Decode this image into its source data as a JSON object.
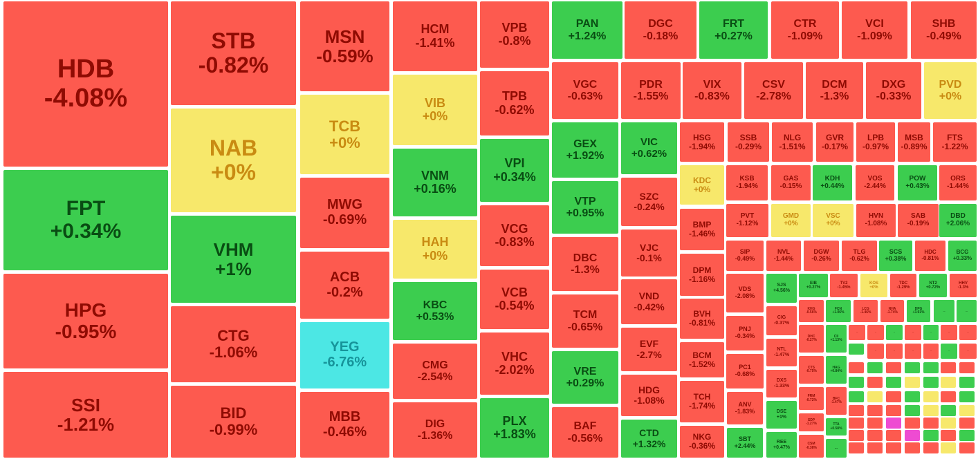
{
  "legend_colors": {
    "down": "#fd5a4f",
    "up": "#3ccd4f",
    "unchanged": "#f7e86b",
    "floor": "#4ce7e4",
    "ceiling": "#ee4bd2"
  },
  "tiles": [
    {
      "sym": "HDB",
      "chg": "-4.08%",
      "st": "dn"
    },
    {
      "sym": "FPT",
      "chg": "+0.34%",
      "st": "up"
    },
    {
      "sym": "HPG",
      "chg": "-0.95%",
      "st": "dn"
    },
    {
      "sym": "SSI",
      "chg": "-1.21%",
      "st": "dn"
    },
    {
      "sym": "STB",
      "chg": "-0.82%",
      "st": "dn"
    },
    {
      "sym": "NAB",
      "chg": "+0%",
      "st": "eq"
    },
    {
      "sym": "VHM",
      "chg": "+1%",
      "st": "up"
    },
    {
      "sym": "CTG",
      "chg": "-1.06%",
      "st": "dn"
    },
    {
      "sym": "BID",
      "chg": "-0.99%",
      "st": "dn"
    },
    {
      "sym": "MSN",
      "chg": "-0.59%",
      "st": "dn"
    },
    {
      "sym": "TCB",
      "chg": "+0%",
      "st": "eq"
    },
    {
      "sym": "MWG",
      "chg": "-0.69%",
      "st": "dn"
    },
    {
      "sym": "ACB",
      "chg": "-0.2%",
      "st": "dn"
    },
    {
      "sym": "YEG",
      "chg": "-6.76%",
      "st": "fl"
    },
    {
      "sym": "MBB",
      "chg": "-0.46%",
      "st": "dn"
    },
    {
      "sym": "HCM",
      "chg": "-1.41%",
      "st": "dn"
    },
    {
      "sym": "VIB",
      "chg": "+0%",
      "st": "eq"
    },
    {
      "sym": "VNM",
      "chg": "+0.16%",
      "st": "up"
    },
    {
      "sym": "HAH",
      "chg": "+0%",
      "st": "eq"
    },
    {
      "sym": "KBC",
      "chg": "+0.53%",
      "st": "up"
    },
    {
      "sym": "CMG",
      "chg": "-2.54%",
      "st": "dn"
    },
    {
      "sym": "DIG",
      "chg": "-1.36%",
      "st": "dn"
    },
    {
      "sym": "VPB",
      "chg": "-0.8%",
      "st": "dn"
    },
    {
      "sym": "TPB",
      "chg": "-0.62%",
      "st": "dn"
    },
    {
      "sym": "VPI",
      "chg": "+0.34%",
      "st": "up"
    },
    {
      "sym": "VCG",
      "chg": "-0.83%",
      "st": "dn"
    },
    {
      "sym": "VCB",
      "chg": "-0.54%",
      "st": "dn"
    },
    {
      "sym": "VHC",
      "chg": "-2.02%",
      "st": "dn"
    },
    {
      "sym": "PLX",
      "chg": "+1.83%",
      "st": "up"
    },
    {
      "sym": "PAN",
      "chg": "+1.24%",
      "st": "up"
    },
    {
      "sym": "DGC",
      "chg": "-0.18%",
      "st": "dn"
    },
    {
      "sym": "FRT",
      "chg": "+0.27%",
      "st": "up"
    },
    {
      "sym": "CTR",
      "chg": "-1.09%",
      "st": "dn"
    },
    {
      "sym": "VCI",
      "chg": "-1.09%",
      "st": "dn"
    },
    {
      "sym": "SHB",
      "chg": "-0.49%",
      "st": "dn"
    },
    {
      "sym": "VGC",
      "chg": "-0.63%",
      "st": "dn"
    },
    {
      "sym": "PDR",
      "chg": "-1.55%",
      "st": "dn"
    },
    {
      "sym": "VIX",
      "chg": "-0.83%",
      "st": "dn"
    },
    {
      "sym": "CSV",
      "chg": "-2.78%",
      "st": "dn"
    },
    {
      "sym": "DCM",
      "chg": "-1.3%",
      "st": "dn"
    },
    {
      "sym": "DXG",
      "chg": "-0.33%",
      "st": "dn"
    },
    {
      "sym": "PVD",
      "chg": "+0%",
      "st": "eq"
    },
    {
      "sym": "GEX",
      "chg": "+1.92%",
      "st": "up"
    },
    {
      "sym": "VIC",
      "chg": "+0.62%",
      "st": "up"
    },
    {
      "sym": "VTP",
      "chg": "+0.95%",
      "st": "up"
    },
    {
      "sym": "DBC",
      "chg": "-1.3%",
      "st": "dn"
    },
    {
      "sym": "TCM",
      "chg": "-0.65%",
      "st": "dn"
    },
    {
      "sym": "VRE",
      "chg": "+0.29%",
      "st": "up"
    },
    {
      "sym": "BAF",
      "chg": "-0.56%",
      "st": "dn"
    },
    {
      "sym": "SZC",
      "chg": "-0.24%",
      "st": "dn"
    },
    {
      "sym": "VJC",
      "chg": "-0.1%",
      "st": "dn"
    },
    {
      "sym": "VND",
      "chg": "-0.42%",
      "st": "dn"
    },
    {
      "sym": "EVF",
      "chg": "-2.7%",
      "st": "dn"
    },
    {
      "sym": "HDG",
      "chg": "-1.08%",
      "st": "dn"
    },
    {
      "sym": "CTD",
      "chg": "+1.32%",
      "st": "up"
    },
    {
      "sym": "HSG",
      "chg": "-1.94%",
      "st": "dn"
    },
    {
      "sym": "SSB",
      "chg": "-0.29%",
      "st": "dn"
    },
    {
      "sym": "NLG",
      "chg": "-1.51%",
      "st": "dn"
    },
    {
      "sym": "GVR",
      "chg": "-0.17%",
      "st": "dn"
    },
    {
      "sym": "LPB",
      "chg": "-0.97%",
      "st": "dn"
    },
    {
      "sym": "MSB",
      "chg": "-0.89%",
      "st": "dn"
    },
    {
      "sym": "FTS",
      "chg": "-1.22%",
      "st": "dn"
    },
    {
      "sym": "KDC",
      "chg": "+0%",
      "st": "eq"
    },
    {
      "sym": "KSB",
      "chg": "-1.94%",
      "st": "dn"
    },
    {
      "sym": "GAS",
      "chg": "-0.15%",
      "st": "dn"
    },
    {
      "sym": "KDH",
      "chg": "+0.44%",
      "st": "up"
    },
    {
      "sym": "VOS",
      "chg": "-2.44%",
      "st": "dn"
    },
    {
      "sym": "POW",
      "chg": "+0.43%",
      "st": "up"
    },
    {
      "sym": "ORS",
      "chg": "-1.44%",
      "st": "dn"
    },
    {
      "sym": "BMP",
      "chg": "-1.46%",
      "st": "dn"
    },
    {
      "sym": "PVT",
      "chg": "-1.12%",
      "st": "dn"
    },
    {
      "sym": "GMD",
      "chg": "+0%",
      "st": "eq"
    },
    {
      "sym": "VSC",
      "chg": "+0%",
      "st": "eq"
    },
    {
      "sym": "HVN",
      "chg": "-1.08%",
      "st": "dn"
    },
    {
      "sym": "SAB",
      "chg": "-0.19%",
      "st": "dn"
    },
    {
      "sym": "DBD",
      "chg": "+2.06%",
      "st": "up"
    },
    {
      "sym": "DPM",
      "chg": "-1.16%",
      "st": "dn"
    },
    {
      "sym": "SIP",
      "chg": "-0.49%",
      "st": "dn"
    },
    {
      "sym": "NVL",
      "chg": "-1.44%",
      "st": "dn"
    },
    {
      "sym": "DGW",
      "chg": "-0.26%",
      "st": "dn"
    },
    {
      "sym": "TLG",
      "chg": "-0.62%",
      "st": "dn"
    },
    {
      "sym": "SCS",
      "chg": "+0.38%",
      "st": "up"
    },
    {
      "sym": "HDC",
      "chg": "-0.81%",
      "st": "dn"
    },
    {
      "sym": "BCG",
      "chg": "+0.33%",
      "st": "up"
    },
    {
      "sym": "BVH",
      "chg": "-0.81%",
      "st": "dn"
    },
    {
      "sym": "VDS",
      "chg": "-2.08%",
      "st": "dn"
    },
    {
      "sym": "SJS",
      "chg": "+4.56%",
      "st": "up"
    },
    {
      "sym": "EIB",
      "chg": "+0.27%",
      "st": "up"
    },
    {
      "sym": "TV2",
      "chg": "-1.45%",
      "st": "dn"
    },
    {
      "sym": "KOS",
      "chg": "+0%",
      "st": "eq"
    },
    {
      "sym": "TDC",
      "chg": "-1.29%",
      "st": "dn"
    },
    {
      "sym": "NT2",
      "chg": "+0.72%",
      "st": "up"
    },
    {
      "sym": "HHV",
      "chg": "-1.3%",
      "st": "dn"
    },
    {
      "sym": "BCM",
      "chg": "-1.52%",
      "st": "dn"
    },
    {
      "sym": "PNJ",
      "chg": "-0.34%",
      "st": "dn"
    },
    {
      "sym": "CIG",
      "chg": "-0.37%",
      "st": "dn"
    },
    {
      "sym": "KHG",
      "chg": "-0.56%",
      "st": "dn"
    },
    {
      "sym": "FCN",
      "chg": "+1.06%",
      "st": "up"
    },
    {
      "sym": "LCG",
      "chg": "-1.46%",
      "st": "dn"
    },
    {
      "sym": "NHA",
      "chg": "-1.74%",
      "st": "dn"
    },
    {
      "sym": "DPG",
      "chg": "+3.91%",
      "st": "up"
    },
    {
      "sym": "TCH",
      "chg": "-1.74%",
      "st": "dn"
    },
    {
      "sym": "PC1",
      "chg": "-0.68%",
      "st": "dn"
    },
    {
      "sym": "NTL",
      "chg": "-1.47%",
      "st": "dn"
    },
    {
      "sym": "DHC",
      "chg": "-0.27%",
      "st": "dn"
    },
    {
      "sym": "CII",
      "chg": "+1.13%",
      "st": "up"
    },
    {
      "sym": "ANV",
      "chg": "-1.83%",
      "st": "dn"
    },
    {
      "sym": "DXS",
      "chg": "-1.33%",
      "st": "dn"
    },
    {
      "sym": "CTS",
      "chg": "-0.75%",
      "st": "dn"
    },
    {
      "sym": "HAG",
      "chg": "+0.84%",
      "st": "up"
    },
    {
      "sym": "NKG",
      "chg": "-0.36%",
      "st": "dn"
    },
    {
      "sym": "SBT",
      "chg": "+2.44%",
      "st": "up"
    },
    {
      "sym": "DSE",
      "chg": "+1%",
      "st": "up"
    },
    {
      "sym": "FRM",
      "chg": "-0.72%",
      "st": "dn"
    },
    {
      "sym": "BFC",
      "chg": "-1.47%",
      "st": "dn"
    },
    {
      "sym": "REE",
      "chg": "+0.47%",
      "st": "up"
    },
    {
      "sym": "SDP",
      "chg": "-1.27%",
      "st": "dn"
    },
    {
      "sym": "TTA",
      "chg": "+0.58%",
      "st": "up"
    },
    {
      "sym": "CSM",
      "chg": "-0.38%",
      "st": "dn"
    },
    {
      "sym": "...",
      "chg": "...",
      "st": "up"
    },
    {
      "sym": "...",
      "chg": "...",
      "st": "up"
    },
    {
      "sym": "...",
      "chg": "...",
      "st": "up"
    },
    {
      "sym": "...",
      "chg": "...",
      "st": "dn"
    },
    {
      "sym": "...",
      "chg": "...",
      "st": "dn"
    },
    {
      "sym": "...",
      "chg": "...",
      "st": "up"
    },
    {
      "sym": "...",
      "chg": "...",
      "st": "dn"
    },
    {
      "sym": "...",
      "chg": "...",
      "st": "up"
    },
    {
      "sym": "...",
      "chg": "...",
      "st": "dn"
    },
    {
      "sym": "...",
      "chg": "...",
      "st": "dn"
    },
    {
      "sym": "...",
      "chg": "...",
      "st": "dn"
    },
    {
      "sym": "...",
      "chg": "...",
      "st": "dn"
    },
    {
      "sym": "...",
      "chg": "...",
      "st": "dn"
    },
    {
      "sym": "...",
      "chg": "...",
      "st": "dn"
    },
    {
      "sym": "...",
      "chg": "...",
      "st": "up"
    },
    {
      "sym": "...",
      "chg": "...",
      "st": "dn"
    }
  ]
}
